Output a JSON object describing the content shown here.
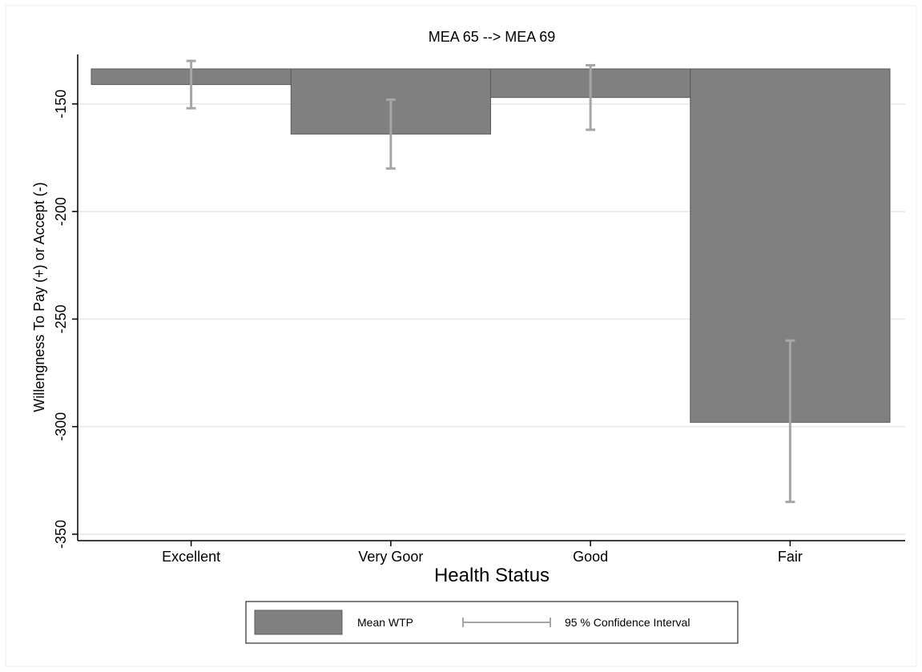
{
  "chart_data": {
    "type": "bar",
    "title": "MEA 65 --> MEA 69",
    "xlabel": "Health Status",
    "ylabel": "Willengness To Pay (+) or Accept (-)",
    "categories": [
      "Excellent",
      "Very Goor",
      "Good",
      "Fair"
    ],
    "series": [
      {
        "name": "Mean WTP",
        "values": [
          -141,
          -164,
          -147,
          -298
        ]
      }
    ],
    "confidence_interval": {
      "name": "95 % Confidence Interval",
      "lower": [
        -152,
        -180,
        -162,
        -335
      ],
      "upper": [
        -130,
        -148,
        -132,
        -260
      ]
    },
    "ylim": [
      -353,
      -127
    ],
    "yticks": [
      -150,
      -200,
      -250,
      -300,
      -350
    ],
    "grid": true,
    "legend_position": "bottom",
    "colors": {
      "bar": "#808080",
      "bar_edge": "#5a5a5a",
      "ci": "#a6a6a6",
      "grid": "#e6e6e6"
    }
  }
}
